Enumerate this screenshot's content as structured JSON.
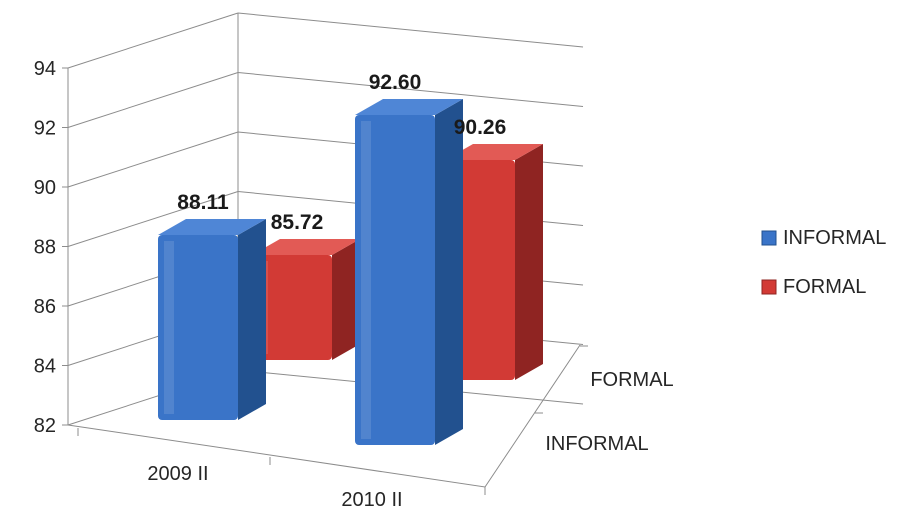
{
  "chart_data": {
    "type": "bar",
    "categories": [
      "2009 II",
      "2010 II"
    ],
    "depth_labels": [
      "INFORMAL",
      "FORMAL"
    ],
    "series": [
      {
        "name": "INFORMAL",
        "values": [
          88.11,
          92.6
        ],
        "labels": [
          "88.11",
          "92.60"
        ],
        "color": "#3a74c8",
        "top_color": "#4f86d6",
        "side_color": "#22518f"
      },
      {
        "name": "FORMAL",
        "values": [
          85.72,
          90.26
        ],
        "labels": [
          "85.72",
          "90.26"
        ],
        "color": "#d23a35",
        "top_color": "#e25a55",
        "side_color": "#8f2422"
      }
    ],
    "y_ticks": [
      "82",
      "84",
      "86",
      "88",
      "90",
      "92",
      "94"
    ],
    "ylim": [
      82,
      94
    ],
    "grid": true,
    "legend_position": "right",
    "xlabel": "",
    "ylabel": "",
    "title": ""
  }
}
